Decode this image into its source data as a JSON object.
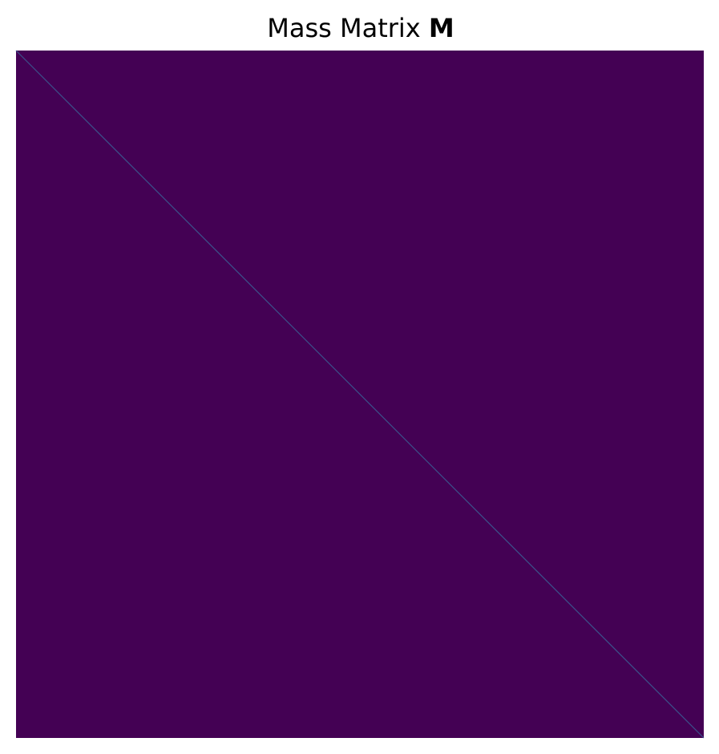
{
  "chart_data": {
    "type": "heatmap",
    "title": "Mass Matrix",
    "title_symbol": "M",
    "pattern": "diagonal",
    "background_color": "#440154",
    "diagonal_color": "#3b528b",
    "axes_visible": false,
    "xlabel": "",
    "ylabel": ""
  }
}
